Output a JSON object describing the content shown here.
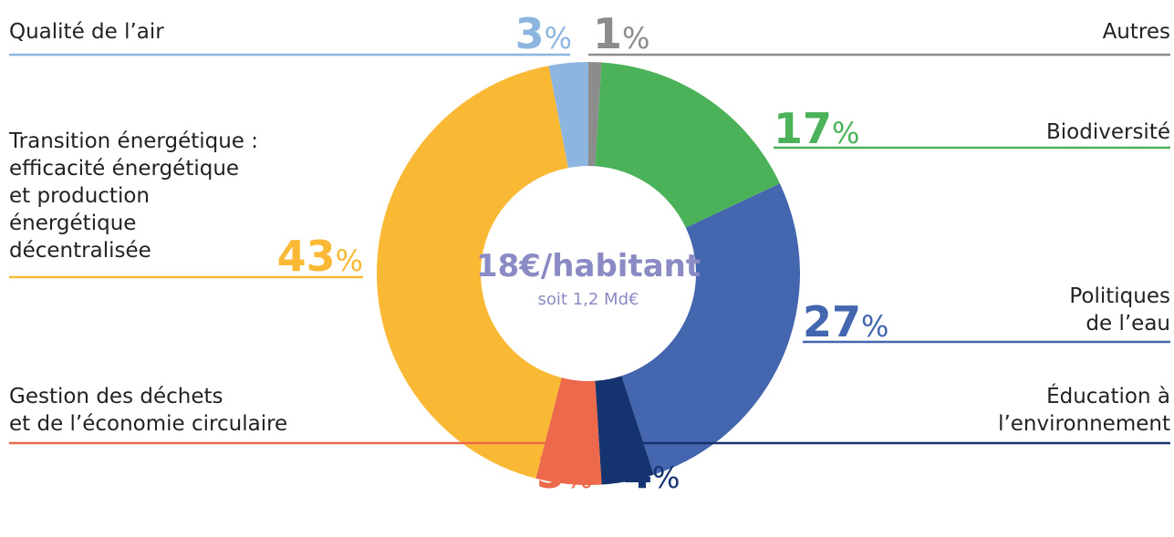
{
  "chart_data": {
    "type": "donut",
    "title": "18€/habitant",
    "subtitle": "soit 1,2 Md€",
    "unit": "%",
    "categories": [
      "Autres",
      "Biodiversité",
      "Politiques\nde l’eau",
      "Éducation à\nl’environnement",
      "Gestion des déchets\net de l’économie circulaire",
      "Transition énergétique :\nefficacité énergétique\net production\nénergétique\ndécentralisée",
      "Qualité de l’air"
    ],
    "values": [
      1,
      17,
      27,
      4,
      5,
      43,
      3
    ],
    "colors": [
      "#8c8c8c",
      "#4cb25a",
      "#4466ae",
      "#15336f",
      "#ec6a4b",
      "#f9b935",
      "#8cb6e0"
    ],
    "title_color": "#8a8ac4"
  }
}
